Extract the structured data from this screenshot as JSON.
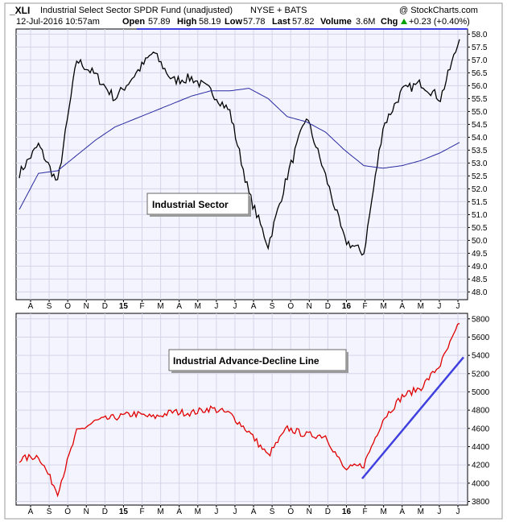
{
  "header": {
    "symbol": "_XLI",
    "name": "Industrial Select Sector SPDR Fund (unadjusted)",
    "exchange": "NYSE + BATS",
    "brand": "@ StockCharts.com",
    "date": "12-Jul-2016 10:57am",
    "open_label": "Open",
    "open": "57.89",
    "high_label": "High",
    "high": "58.19",
    "low_label": "Low",
    "low": "57.78",
    "last_label": "Last",
    "last": "57.82",
    "volume_label": "Volume",
    "volume": "3.6M",
    "chg_label": "Chg",
    "chg": "+0.23 (+0.40%)",
    "up_arrow": "up-arrow-icon"
  },
  "colors": {
    "price": "#000000",
    "moving_average": "#2a2aa0",
    "ad_line": "#e00000",
    "trend_line": "#4040e0",
    "panel_bg": "#f4f4ff",
    "grid": "#d4d4e8"
  },
  "x_axis": {
    "months": [
      "A",
      "S",
      "O",
      "N",
      "D",
      "15",
      "F",
      "M",
      "A",
      "M",
      "J",
      "J",
      "A",
      "S",
      "O",
      "N",
      "D",
      "16",
      "F",
      "M",
      "A",
      "M",
      "J",
      "J"
    ]
  },
  "chart_data": [
    {
      "type": "line",
      "panel": "top",
      "annotation": "Industrial Sector",
      "y_axis_side": "right",
      "ylim": [
        47.7,
        58.2
      ],
      "y_ticks": [
        "48.0",
        "48.5",
        "49.0",
        "49.5",
        "50.0",
        "50.5",
        "51.0",
        "51.5",
        "52.0",
        "52.5",
        "53.0",
        "53.5",
        "54.0",
        "54.5",
        "55.0",
        "55.5",
        "56.0",
        "56.5",
        "57.0",
        "57.5",
        "58.0"
      ],
      "x": [
        "Aug 2014",
        "Sep",
        "Oct",
        "Nov",
        "Dec",
        "Jan 2015",
        "Feb",
        "Mar",
        "Apr",
        "May",
        "Jun",
        "Jul",
        "Aug",
        "Sep",
        "Oct",
        "Nov",
        "Dec",
        "Jan 2016",
        "Feb",
        "Mar",
        "Apr",
        "May",
        "Jun",
        "Jul"
      ],
      "series": [
        {
          "values": [
            52.6,
            53.7,
            52.2,
            57.0,
            56.4,
            55.5,
            56.4,
            57.3,
            56.2,
            56.3,
            55.8,
            55.0,
            51.8,
            49.8,
            52.5,
            54.8,
            52.5,
            50.0,
            49.5,
            54.4,
            55.8,
            56.1,
            55.5,
            57.8
          ]
        },
        {
          "values": [
            51.2,
            52.6,
            52.7,
            53.3,
            53.9,
            54.4,
            54.7,
            55.0,
            55.3,
            55.6,
            55.8,
            55.8,
            55.9,
            55.5,
            54.8,
            54.6,
            54.2,
            53.5,
            52.9,
            52.8,
            52.9,
            53.1,
            53.4,
            53.8
          ]
        }
      ],
      "resistance_level": 58.2
    },
    {
      "type": "line",
      "panel": "bottom",
      "annotation": "Industrial Advance-Decline Line",
      "y_axis_side": "right",
      "ylim": [
        3760,
        5860
      ],
      "y_ticks": [
        "3800",
        "4000",
        "4200",
        "4400",
        "4600",
        "4800",
        "5000",
        "5200",
        "5400",
        "5600",
        "5800"
      ],
      "x": [
        "Aug 2014",
        "Sep",
        "Oct",
        "Nov",
        "Dec",
        "Jan 2015",
        "Feb",
        "Mar",
        "Apr",
        "May",
        "Jun",
        "Jul",
        "Aug",
        "Sep",
        "Oct",
        "Nov",
        "Dec",
        "Jan 2016",
        "Feb",
        "Mar",
        "Apr",
        "May",
        "Jun",
        "Jul"
      ],
      "series": [
        {
          "values": [
            4260,
            4300,
            3900,
            4560,
            4680,
            4720,
            4760,
            4720,
            4780,
            4770,
            4820,
            4760,
            4560,
            4300,
            4600,
            4530,
            4520,
            4150,
            4200,
            4700,
            4950,
            5050,
            5300,
            5750
          ]
        }
      ],
      "trend_line": {
        "x": [
          "early Feb 2016",
          "late Jun 2016"
        ],
        "values": [
          4050,
          5380
        ]
      }
    }
  ]
}
